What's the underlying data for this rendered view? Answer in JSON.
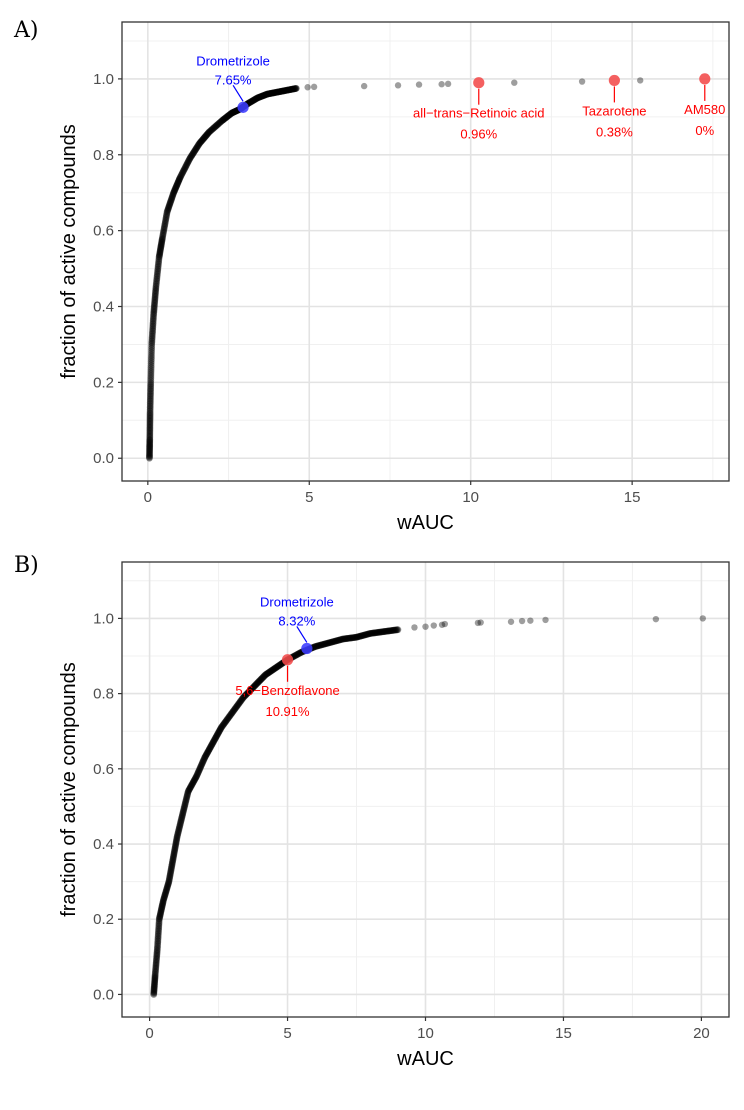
{
  "chart_data": [
    {
      "type": "scatter",
      "panel_label": "A)",
      "xlabel": "wAUC",
      "ylabel": "fraction of active compounds",
      "xlim": [
        -0.8,
        18.0
      ],
      "ylim": [
        -0.06,
        1.15
      ],
      "xticks": [
        0,
        5,
        10,
        15
      ],
      "yticks": [
        0.0,
        0.2,
        0.4,
        0.6,
        0.8,
        1.0
      ],
      "grid": true,
      "curve": [
        [
          0.05,
          0.0
        ],
        [
          0.06,
          0.05
        ],
        [
          0.07,
          0.12
        ],
        [
          0.09,
          0.2
        ],
        [
          0.12,
          0.3
        ],
        [
          0.18,
          0.38
        ],
        [
          0.25,
          0.45
        ],
        [
          0.35,
          0.53
        ],
        [
          0.45,
          0.58
        ],
        [
          0.6,
          0.65
        ],
        [
          0.8,
          0.7
        ],
        [
          1.0,
          0.74
        ],
        [
          1.3,
          0.79
        ],
        [
          1.6,
          0.83
        ],
        [
          1.9,
          0.86
        ],
        [
          2.3,
          0.89
        ],
        [
          2.6,
          0.91
        ],
        [
          2.85,
          0.92
        ],
        [
          3.1,
          0.935
        ],
        [
          3.4,
          0.95
        ],
        [
          3.7,
          0.96
        ],
        [
          4.0,
          0.965
        ],
        [
          4.3,
          0.97
        ],
        [
          4.6,
          0.975
        ]
      ],
      "outliers": [
        [
          4.95,
          0.978
        ],
        [
          5.15,
          0.979
        ],
        [
          6.7,
          0.981
        ],
        [
          7.75,
          0.983
        ],
        [
          8.4,
          0.985
        ],
        [
          9.1,
          0.986
        ],
        [
          9.3,
          0.987
        ],
        [
          11.35,
          0.99
        ],
        [
          13.45,
          0.993
        ],
        [
          15.25,
          0.996
        ]
      ],
      "highlights": [
        {
          "name": "Drometrizole",
          "pct": "7.65%",
          "x": 2.95,
          "y": 0.925,
          "color": "#0000ff",
          "dot_color": "#3b3bff",
          "label_pos": "above"
        },
        {
          "name": "all−trans−Retinoic acid",
          "pct": "0.96%",
          "x": 10.25,
          "y": 0.99,
          "color": "#ff0000",
          "dot_color": "#f24a4a",
          "label_pos": "below"
        },
        {
          "name": "Tazarotene",
          "pct": "0.38%",
          "x": 14.45,
          "y": 0.996,
          "color": "#ff0000",
          "dot_color": "#f24a4a",
          "label_pos": "below"
        },
        {
          "name": "AM580",
          "pct": "0%",
          "x": 17.25,
          "y": 1.0,
          "color": "#ff0000",
          "dot_color": "#f24a4a",
          "label_pos": "below"
        }
      ]
    },
    {
      "type": "scatter",
      "panel_label": "B)",
      "xlabel": "wAUC",
      "ylabel": "fraction of active compounds",
      "xlim": [
        -1.0,
        21.0
      ],
      "ylim": [
        -0.06,
        1.15
      ],
      "xticks": [
        0,
        5,
        10,
        15,
        20
      ],
      "yticks": [
        0.0,
        0.2,
        0.4,
        0.6,
        0.8,
        1.0
      ],
      "grid": true,
      "curve": [
        [
          0.15,
          0.0
        ],
        [
          0.2,
          0.05
        ],
        [
          0.28,
          0.12
        ],
        [
          0.35,
          0.2
        ],
        [
          0.5,
          0.25
        ],
        [
          0.7,
          0.3
        ],
        [
          0.85,
          0.36
        ],
        [
          1.0,
          0.42
        ],
        [
          1.2,
          0.48
        ],
        [
          1.4,
          0.54
        ],
        [
          1.7,
          0.58
        ],
        [
          2.0,
          0.63
        ],
        [
          2.3,
          0.67
        ],
        [
          2.6,
          0.71
        ],
        [
          3.0,
          0.75
        ],
        [
          3.4,
          0.79
        ],
        [
          3.8,
          0.82
        ],
        [
          4.2,
          0.85
        ],
        [
          4.6,
          0.87
        ],
        [
          5.0,
          0.89
        ],
        [
          5.5,
          0.91
        ],
        [
          6.0,
          0.925
        ],
        [
          6.5,
          0.935
        ],
        [
          7.0,
          0.945
        ],
        [
          7.5,
          0.95
        ],
        [
          8.0,
          0.96
        ],
        [
          8.5,
          0.965
        ],
        [
          9.0,
          0.97
        ]
      ],
      "outliers": [
        [
          9.6,
          0.976
        ],
        [
          10.0,
          0.978
        ],
        [
          10.3,
          0.981
        ],
        [
          10.6,
          0.983
        ],
        [
          10.7,
          0.985
        ],
        [
          11.9,
          0.988
        ],
        [
          12.0,
          0.989
        ],
        [
          13.1,
          0.991
        ],
        [
          13.5,
          0.993
        ],
        [
          13.8,
          0.994
        ],
        [
          14.35,
          0.996
        ],
        [
          18.35,
          0.998
        ],
        [
          20.05,
          1.0
        ]
      ],
      "highlights": [
        {
          "name": "5,6−Benzoflavone",
          "pct": "10.91%",
          "x": 5.0,
          "y": 0.89,
          "color": "#ff0000",
          "dot_color": "#f24a4a",
          "label_pos": "below"
        },
        {
          "name": "Drometrizole",
          "pct": "8.32%",
          "x": 5.7,
          "y": 0.92,
          "color": "#0000ff",
          "dot_color": "#3b3bff",
          "label_pos": "above"
        }
      ]
    }
  ]
}
